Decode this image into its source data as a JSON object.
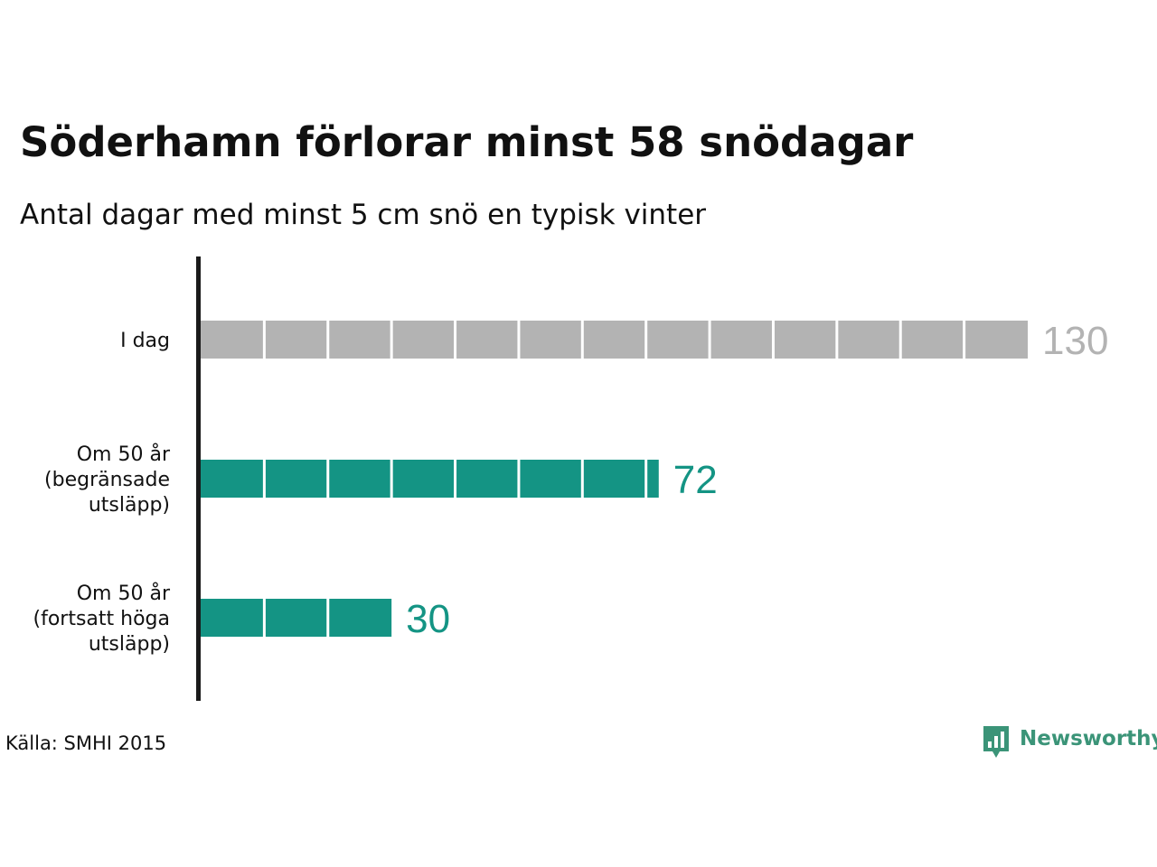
{
  "title": "Söderhamn förlorar minst 58 snödagar",
  "subtitle": "Antal dagar med minst 5 cm snö en typisk vinter",
  "source": "Källa: SMHI 2015",
  "brand": {
    "name": "Newsworthy",
    "color": "#3b9478"
  },
  "colors": {
    "today": "#b3b3b3",
    "today_label": "#b3b3b3",
    "future": "#149484",
    "future_label": "#149484",
    "axis": "#1a1a1a"
  },
  "chart_data": {
    "type": "bar",
    "orientation": "horizontal",
    "title": "Söderhamn förlorar minst 58 snödagar",
    "subtitle": "Antal dagar med minst 5 cm snö en typisk vinter",
    "categories": [
      [
        "I dag"
      ],
      [
        "Om 50 år",
        "(begränsade",
        "utsläpp)"
      ],
      [
        "Om 50 år",
        "(fortsatt höga",
        "utsläpp)"
      ]
    ],
    "values": [
      130,
      72,
      30
    ],
    "value_labels": [
      "130",
      "72",
      "30"
    ],
    "bar_colors": [
      "#b3b3b3",
      "#149484",
      "#149484"
    ],
    "segment_size": 10,
    "xlim": [
      0,
      130
    ],
    "grid": false,
    "legend": "none"
  }
}
